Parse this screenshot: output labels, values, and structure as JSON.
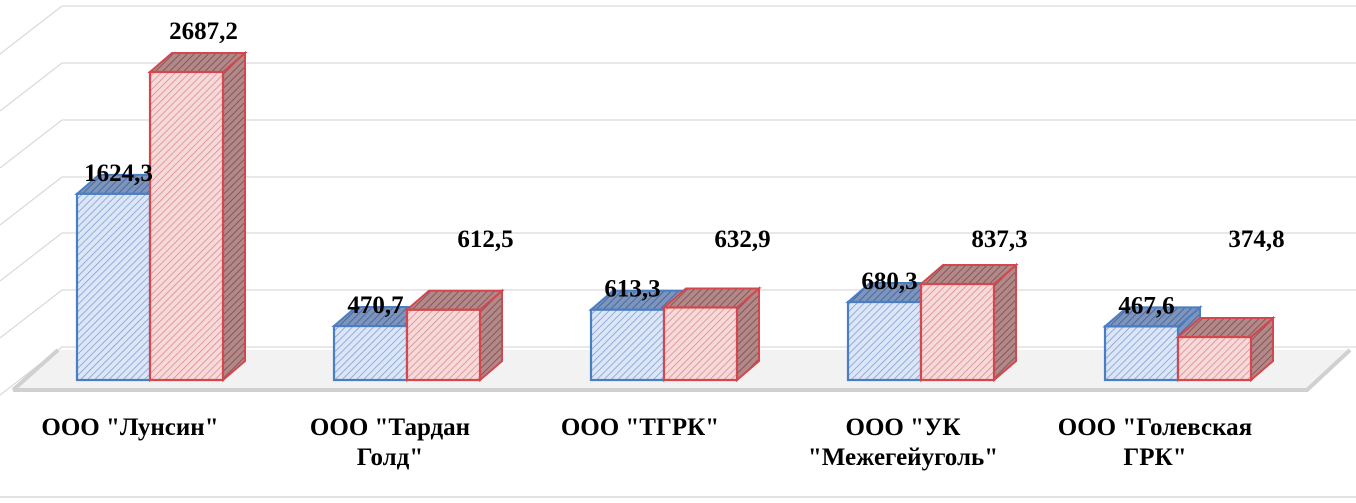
{
  "chart_data": {
    "type": "bar",
    "categories": [
      [
        "ООО \"Лунсин\""
      ],
      [
        "ООО \"Тардан",
        "Голд\""
      ],
      [
        "ООО \"ТГРК\""
      ],
      [
        "ООО \"УК",
        "\"Межегейуголь\""
      ],
      [
        "ООО \"Голевская",
        "ГРК\""
      ]
    ],
    "series": [
      {
        "values": [
          1624.3,
          470.7,
          613.3,
          680.3,
          467.6
        ],
        "labels": [
          "1624,3",
          "470,7",
          "613,3",
          "680,3",
          "467,6"
        ],
        "color": "#4a7ec2"
      },
      {
        "values": [
          2687.2,
          612.5,
          632.9,
          837.3,
          374.8
        ],
        "labels": [
          "2687,2",
          "612,5",
          "632,9",
          "837,3",
          "374,8"
        ],
        "color": "#d2484e"
      }
    ],
    "ylim": [
      0,
      3000
    ],
    "grid": true,
    "legend": "none",
    "projection": "3d"
  }
}
